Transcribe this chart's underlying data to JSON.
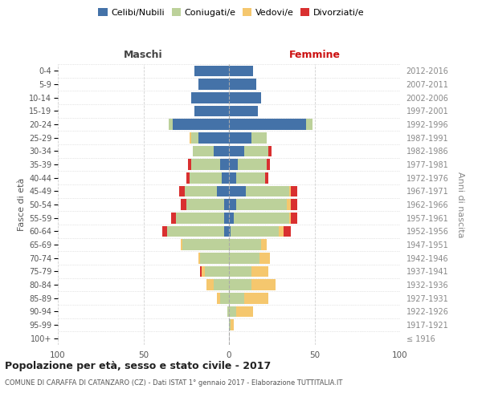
{
  "age_groups": [
    "100+",
    "95-99",
    "90-94",
    "85-89",
    "80-84",
    "75-79",
    "70-74",
    "65-69",
    "60-64",
    "55-59",
    "50-54",
    "45-49",
    "40-44",
    "35-39",
    "30-34",
    "25-29",
    "20-24",
    "15-19",
    "10-14",
    "5-9",
    "0-4"
  ],
  "birth_years": [
    "≤ 1916",
    "1917-1921",
    "1922-1926",
    "1927-1931",
    "1932-1936",
    "1937-1941",
    "1942-1946",
    "1947-1951",
    "1952-1956",
    "1957-1961",
    "1962-1966",
    "1967-1971",
    "1972-1976",
    "1977-1981",
    "1982-1986",
    "1987-1991",
    "1992-1996",
    "1997-2001",
    "2002-2006",
    "2007-2011",
    "2012-2016"
  ],
  "males": {
    "celibi": [
      0,
      0,
      0,
      0,
      0,
      0,
      0,
      0,
      3,
      3,
      3,
      7,
      4,
      5,
      9,
      18,
      33,
      20,
      22,
      18,
      20
    ],
    "coniugati": [
      0,
      0,
      1,
      5,
      9,
      14,
      17,
      27,
      33,
      28,
      22,
      19,
      19,
      17,
      12,
      4,
      2,
      0,
      0,
      0,
      0
    ],
    "vedovi": [
      0,
      0,
      0,
      2,
      4,
      2,
      1,
      1,
      0,
      0,
      0,
      0,
      0,
      0,
      0,
      1,
      0,
      0,
      0,
      0,
      0
    ],
    "divorziati": [
      0,
      0,
      0,
      0,
      0,
      1,
      0,
      0,
      3,
      3,
      3,
      3,
      2,
      2,
      0,
      0,
      0,
      0,
      0,
      0,
      0
    ]
  },
  "females": {
    "nubili": [
      0,
      0,
      0,
      0,
      0,
      0,
      0,
      0,
      1,
      3,
      4,
      10,
      4,
      5,
      9,
      13,
      45,
      17,
      19,
      16,
      14
    ],
    "coniugate": [
      0,
      1,
      4,
      9,
      13,
      13,
      18,
      19,
      28,
      32,
      30,
      25,
      17,
      17,
      14,
      9,
      4,
      0,
      0,
      0,
      0
    ],
    "vedove": [
      0,
      2,
      10,
      14,
      14,
      10,
      6,
      3,
      3,
      1,
      2,
      1,
      0,
      0,
      0,
      0,
      0,
      0,
      0,
      0,
      0
    ],
    "divorziate": [
      0,
      0,
      0,
      0,
      0,
      0,
      0,
      0,
      4,
      4,
      4,
      4,
      2,
      2,
      2,
      0,
      0,
      0,
      0,
      0,
      0
    ]
  },
  "colors": {
    "celibi": "#4472a8",
    "coniugati": "#bcd19a",
    "vedovi": "#f5c76e",
    "divorziati": "#d93030"
  },
  "legend_labels": [
    "Celibi/Nubili",
    "Coniugati/e",
    "Vedovi/e",
    "Divorziati/e"
  ],
  "title": "Popolazione per età, sesso e stato civile - 2017",
  "subtitle": "COMUNE DI CARAFFA DI CATANZARO (CZ) - Dati ISTAT 1° gennaio 2017 - Elaborazione TUTTITALIA.IT",
  "xlabel_left": "Maschi",
  "xlabel_right": "Femmine",
  "ylabel_left": "Fasce di età",
  "ylabel_right": "Anni di nascita",
  "xlim": 100,
  "bg_color": "#ffffff",
  "grid_color": "#cccccc"
}
